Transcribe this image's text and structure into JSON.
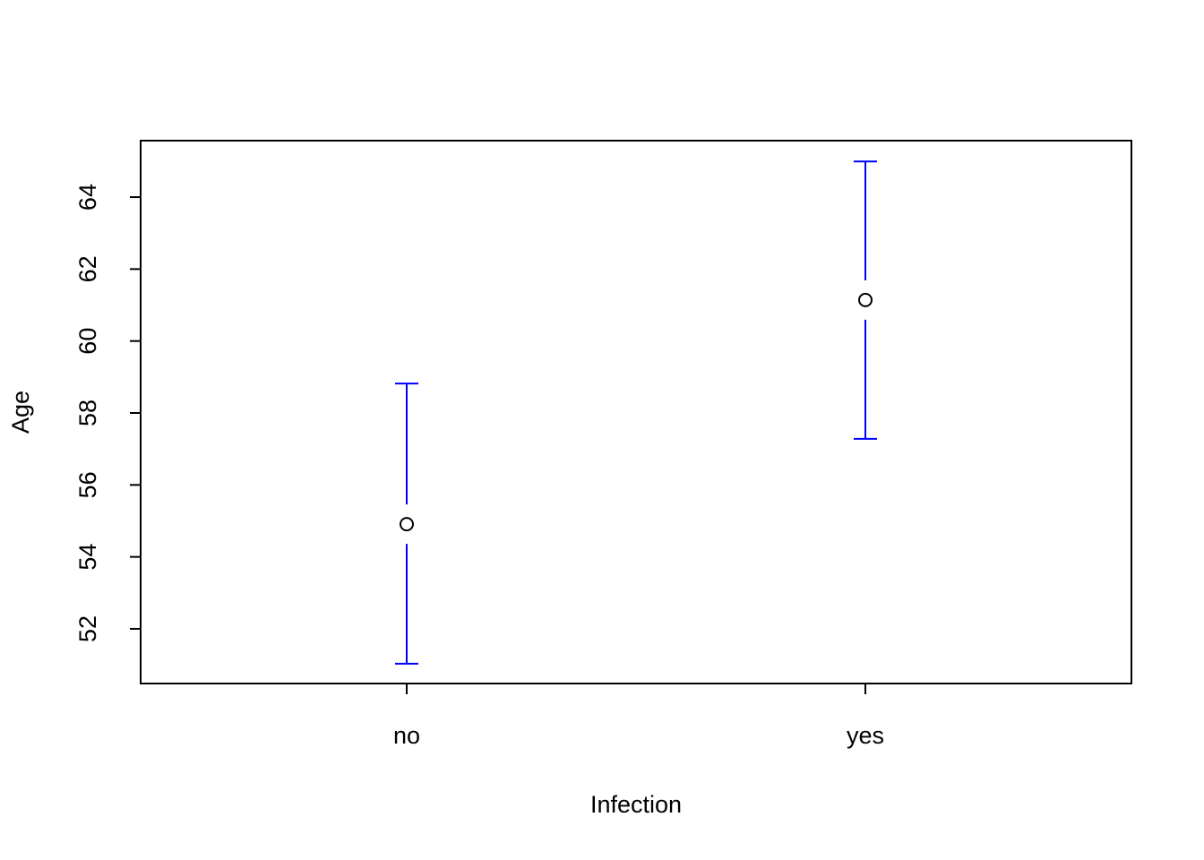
{
  "chart_data": {
    "type": "errorbar",
    "x_label": "Infection",
    "y_label": "Age",
    "categories": [
      "no",
      "yes"
    ],
    "series": [
      {
        "color": "#0000ff",
        "marker_color": "#000000",
        "values": [
          54.91,
          61.14
        ],
        "lower": [
          51.03,
          57.28
        ],
        "upper": [
          58.82,
          64.99
        ]
      }
    ],
    "ylim": [
      50.48,
      65.57
    ],
    "yticks": [
      52,
      54,
      56,
      58,
      60,
      62,
      64
    ],
    "grid": false
  }
}
